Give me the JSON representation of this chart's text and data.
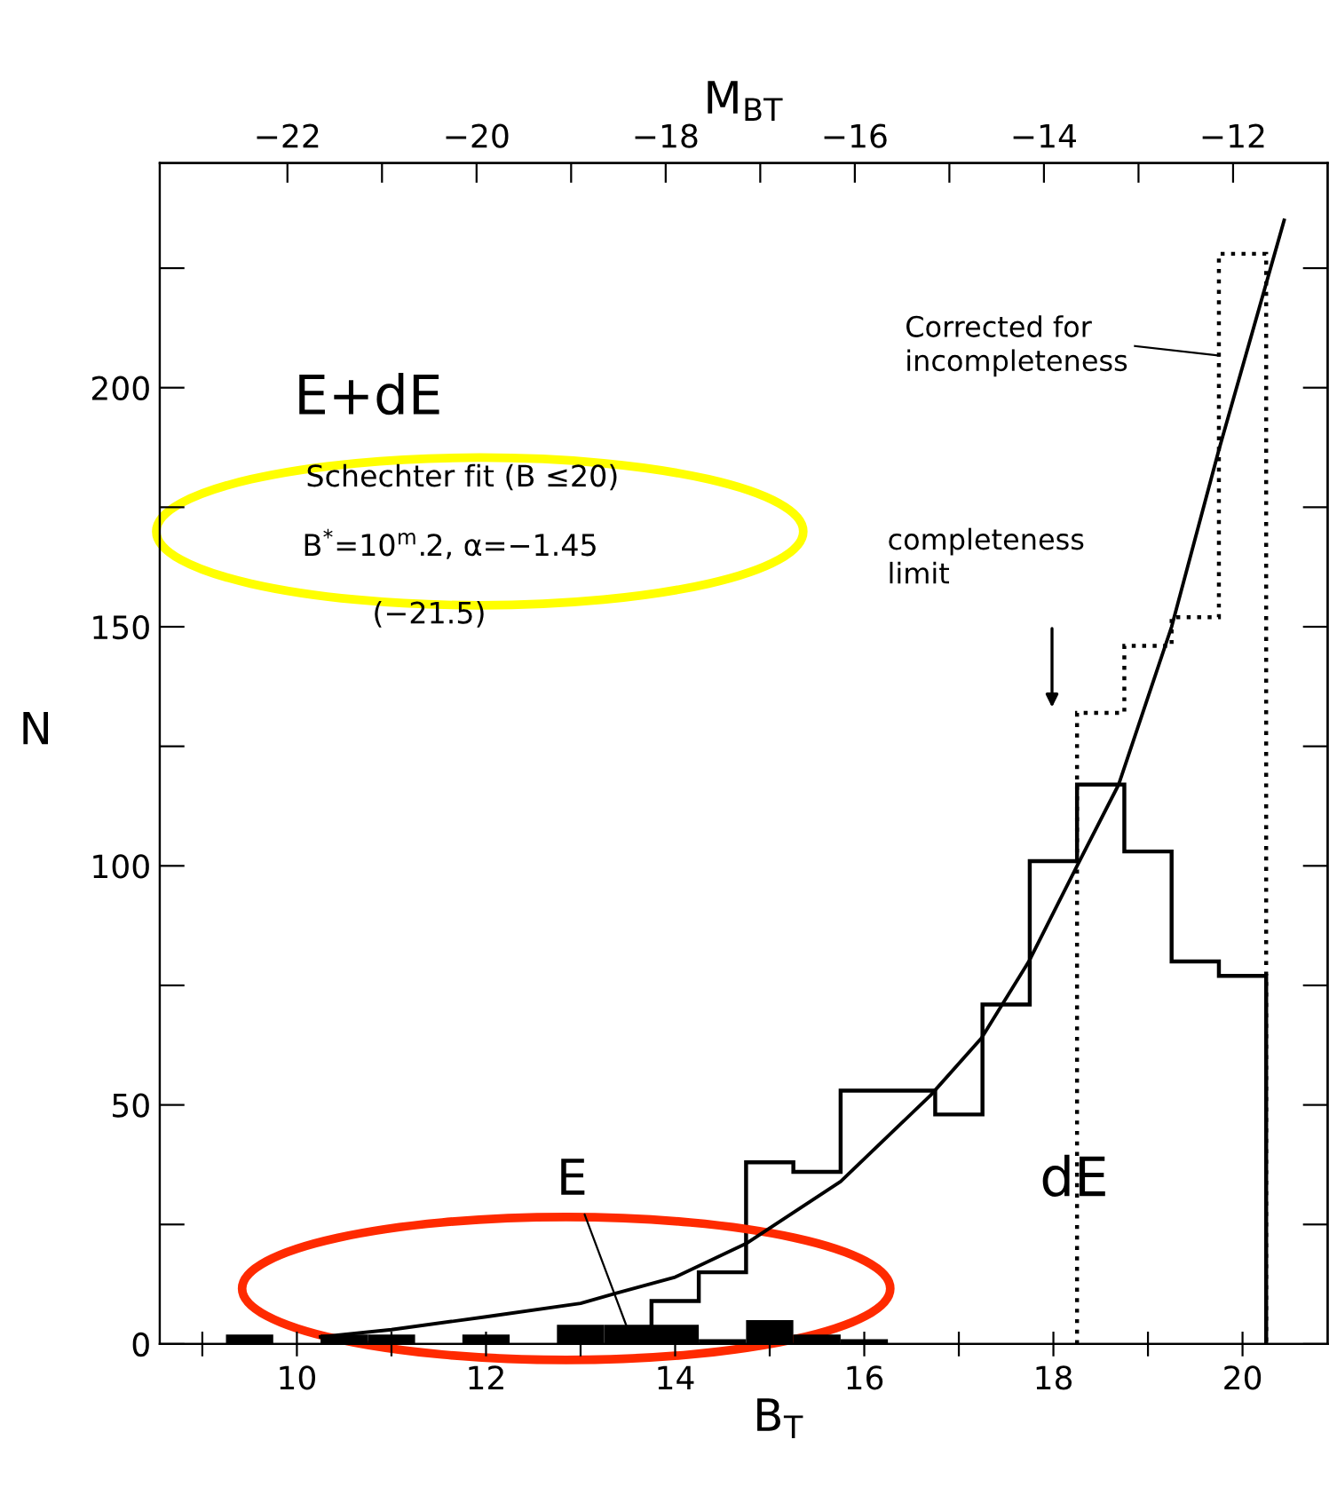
{
  "chart_data": {
    "type": "histogram",
    "xlabel": "B$_{T}$",
    "ylabel": "N",
    "x2label": "M$_{BT}$",
    "bins": [
      13.75,
      14.25,
      14.75,
      15.25,
      15.75,
      16.25,
      16.75,
      17.25,
      17.75,
      18.25,
      18.75,
      19.25,
      19.75,
      20.25
    ],
    "series": [
      {
        "type": "histogram",
        "color": "#000000",
        "line_style": "solid",
        "values": [
          9,
          15,
          38,
          36,
          53,
          53,
          48,
          71,
          101,
          117,
          103,
          80,
          77
        ]
      },
      {
        "type": "histogram",
        "color": "#000000",
        "line_style": "dotted",
        "bins": [
          18.25,
          18.75,
          19.25,
          19.75,
          20.25
        ],
        "values": [
          132,
          146,
          152,
          228
        ]
      },
      {
        "type": "bar",
        "color": "#000000",
        "x": [
          9.5,
          10.0,
          10.5,
          11.0,
          11.5,
          12.0,
          12.5,
          13.0,
          13.5,
          14.0,
          14.5,
          15.0,
          15.5,
          16.0
        ],
        "values": [
          2,
          0,
          2,
          2,
          0,
          2,
          0,
          4,
          4,
          4,
          1,
          5,
          2,
          1
        ]
      },
      {
        "type": "line",
        "color": "#000000",
        "line_style": "solid",
        "x": [
          10.25,
          11,
          12,
          13,
          13.37,
          14,
          14.75,
          15.75,
          16.7,
          17.24,
          17.74,
          18.25,
          18.69,
          19.25,
          19.75,
          20.44
        ],
        "values": [
          1.5,
          3,
          5.7,
          8.5,
          10.6,
          14,
          21,
          34,
          52,
          64,
          80,
          100,
          117,
          150,
          187,
          235
        ]
      }
    ],
    "xlim": [
      8.55,
      20.9
    ],
    "ylim": [
      0,
      247
    ],
    "xticks": [
      {
        "value": 9,
        "label": null
      },
      10,
      {
        "value": 11,
        "label": null
      },
      12,
      {
        "value": 13,
        "label": null
      },
      14,
      {
        "value": 15,
        "label": null
      },
      16,
      {
        "value": 17,
        "label": null
      },
      18,
      {
        "value": 19,
        "label": null
      },
      20
    ],
    "yticks": [
      0,
      {
        "value": 25,
        "label": null
      },
      50,
      {
        "value": 75,
        "label": null
      },
      100,
      {
        "value": 125,
        "label": null
      },
      150,
      {
        "value": 175,
        "label": null
      },
      200,
      {
        "value": 225,
        "label": null
      }
    ],
    "x2lim": [
      -23.35,
      -11.0
    ],
    "x2ticks": [
      -22,
      {
        "value": -21,
        "label": null
      },
      -20,
      {
        "value": -19,
        "label": null
      },
      -18,
      {
        "value": -17,
        "label": null
      },
      -16,
      {
        "value": -15,
        "label": null
      },
      -14,
      {
        "value": -13,
        "label": null
      },
      -12
    ],
    "grid": false,
    "legend": false,
    "annotations": [
      "E+dE",
      "Schechter fit (B ≤20)",
      "B$^{*}$=10$^{m}$.2, α=−1.45",
      "(−21.5)",
      "Corrected for\nincompleteness",
      "completeness\nlimit",
      {
        "text": "E",
        "x": 13.5,
        "y": 3
      },
      "dE"
    ]
  }
}
